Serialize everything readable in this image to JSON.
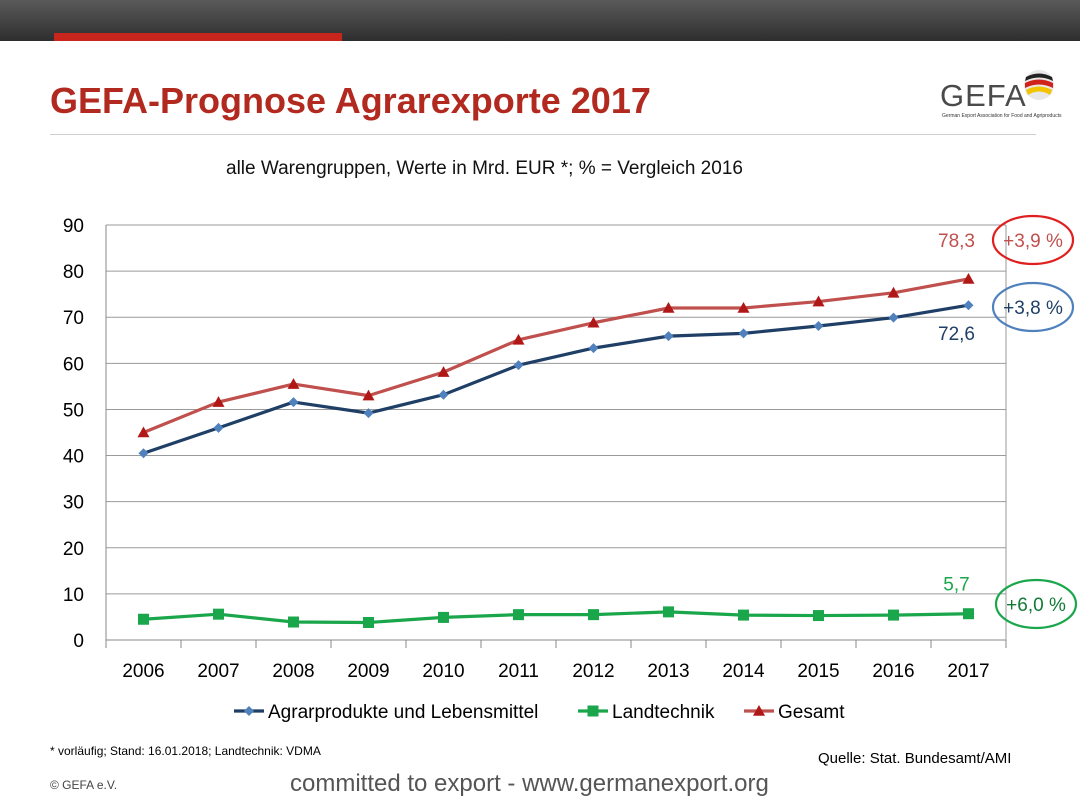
{
  "header": {
    "title": "GEFA-Prognose Agrarexporte 2017",
    "logo_text": "GEFA",
    "logo_subtext": "German Export Association for Food and Agriproducts"
  },
  "footer": {
    "footnote": "* vorläufig; Stand: 16.01.2018; Landtechnik: VDMA",
    "source": "Quelle: Stat. Bundesamt/AMI",
    "copyright": "© GEFA e.V.",
    "tagline": "committed to export - www.germanexport.org"
  },
  "colors": {
    "title": "#b22a1f",
    "accent_bar": "#c8261c",
    "agrar": "#1f3f66",
    "agrar_marker": "#4f81bd",
    "landtechnik": "#1aa64a",
    "gesamt": "#c0504d",
    "gesamt_marker": "#b01818"
  },
  "chart_data": {
    "type": "line",
    "title": "alle Warengruppen, Werte in Mrd. EUR *;  % = Vergleich 2016",
    "x": [
      "2006",
      "2007",
      "2008",
      "2009",
      "2010",
      "2011",
      "2012",
      "2013",
      "2014",
      "2015",
      "2016",
      "2017"
    ],
    "ylim": [
      0,
      90
    ],
    "yticks": [
      "0",
      "10",
      "20",
      "30",
      "40",
      "50",
      "60",
      "70",
      "80",
      "90"
    ],
    "grid": true,
    "legend": "bottom",
    "series": [
      {
        "key": "agrar",
        "name": "Agrarprodukte und Lebensmittel",
        "marker": "diamond",
        "values": [
          40.5,
          46,
          51.6,
          49.2,
          53.2,
          59.6,
          63.3,
          65.9,
          66.5,
          68.1,
          69.9,
          72.6
        ],
        "end_label": "72,6",
        "change_label": "+3,8 %"
      },
      {
        "key": "landtechnik",
        "name": "Landtechnik",
        "marker": "square",
        "values": [
          4.5,
          5.6,
          3.9,
          3.8,
          4.9,
          5.5,
          5.5,
          6.1,
          5.4,
          5.3,
          5.4,
          5.7
        ],
        "end_label": "5,7",
        "change_label": "+6,0 %"
      },
      {
        "key": "gesamt",
        "name": "Gesamt",
        "marker": "triangle",
        "values": [
          45,
          51.6,
          55.5,
          53,
          58.1,
          65.1,
          68.8,
          72,
          72,
          73.4,
          75.3,
          78.3
        ],
        "end_label": "78,3",
        "change_label": "+3,9 %"
      }
    ]
  }
}
